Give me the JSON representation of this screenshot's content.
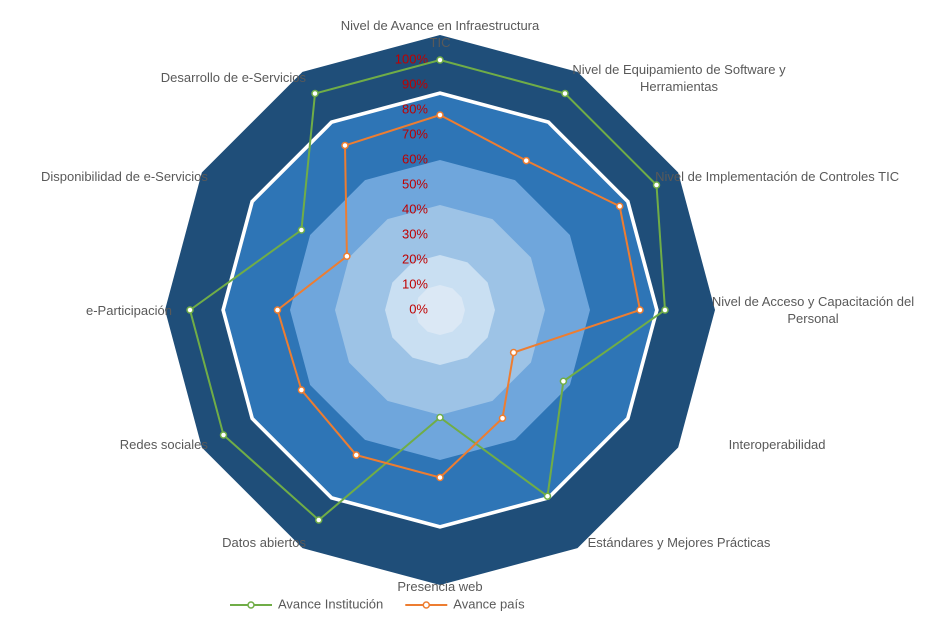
{
  "chart_data": {
    "type": "radar",
    "categories": [
      "Nivel de Avance en Infraestructura TIC",
      "Nivel de Equipamiento de Software y Herramientas",
      "Nivel de Implementación de Controles TIC",
      "Nivel de Acceso y Capacitación del Personal",
      "Interoperabilidad",
      "Estándares y Mejores Prácticas",
      "Presencia web",
      "Datos abiertos",
      "Redes sociales",
      "e-Participación",
      "Disponibilidad de e-Servicios",
      "Desarrollo de e-Servicios"
    ],
    "series": [
      {
        "name": "Avance Institución",
        "color": "#70ad47",
        "values": [
          100,
          100,
          100,
          90,
          57,
          86,
          43,
          97,
          100,
          100,
          64,
          100
        ]
      },
      {
        "name": "Avance país",
        "color": "#ed7d31",
        "values": [
          78,
          69,
          83,
          80,
          34,
          50,
          67,
          67,
          64,
          65,
          43,
          76
        ]
      }
    ],
    "ylim": [
      0,
      100
    ],
    "yticks": [
      {
        "value": 0,
        "label": "0%"
      },
      {
        "value": 10,
        "label": "10%"
      },
      {
        "value": 20,
        "label": "20%"
      },
      {
        "value": 30,
        "label": "30%"
      },
      {
        "value": 40,
        "label": "40%"
      },
      {
        "value": 50,
        "label": "50%"
      },
      {
        "value": 60,
        "label": "60%"
      },
      {
        "value": 70,
        "label": "70%"
      },
      {
        "value": 80,
        "label": "80%"
      },
      {
        "value": 90,
        "label": "90%"
      },
      {
        "value": 100,
        "label": "100%"
      }
    ],
    "legend": "bottom"
  }
}
